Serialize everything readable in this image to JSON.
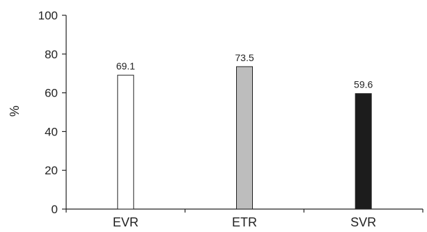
{
  "chart_data": {
    "type": "bar",
    "title": "",
    "xlabel": "",
    "ylabel": "%",
    "categories": [
      "EVR",
      "ETR",
      "SVR"
    ],
    "values": [
      69.1,
      73.5,
      59.6
    ],
    "data_labels": [
      "69.1",
      "73.5",
      "59.6"
    ],
    "bar_colors": [
      "#ffffff",
      "#bdbdbd",
      "#1c1c1c"
    ],
    "ylim": [
      0,
      100
    ],
    "yticks": [
      0,
      20,
      40,
      60,
      80,
      100
    ],
    "grid": false,
    "legend": "none"
  }
}
